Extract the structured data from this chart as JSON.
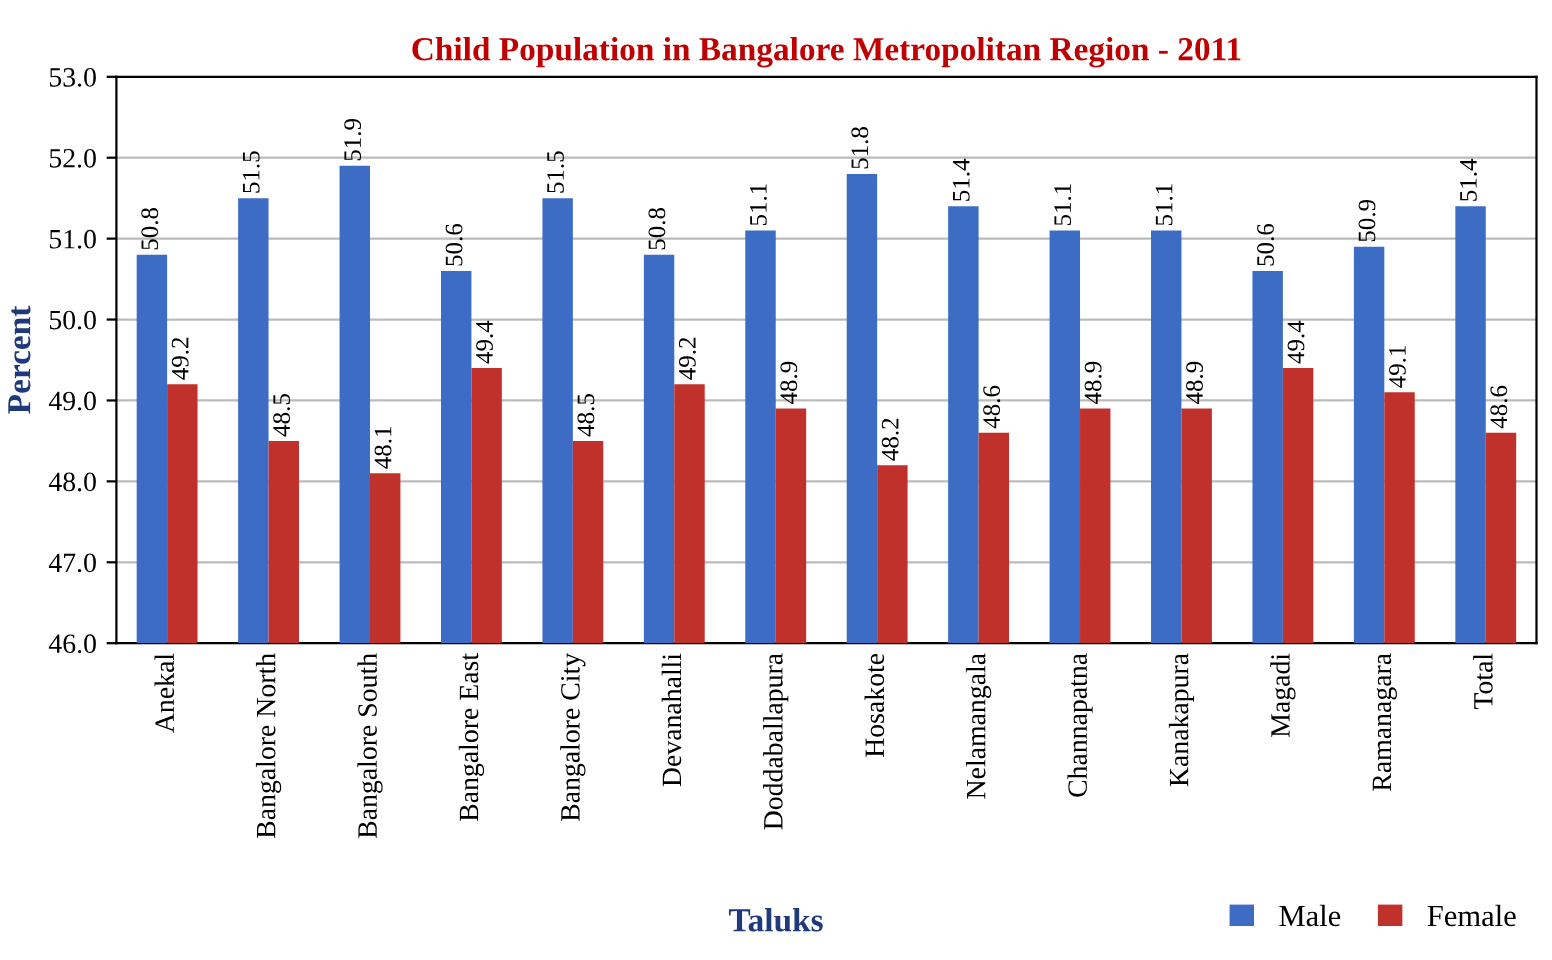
{
  "chart_data": {
    "type": "bar",
    "title": "Child Population in Bangalore Metropolitan Region - 2011",
    "xlabel": "Taluks",
    "ylabel": "Percent",
    "categories": [
      "Anekal",
      "Bangalore North",
      "Bangalore South",
      "Bangalore East",
      "Bangalore City",
      "Devanahalli",
      "Doddaballapura",
      "Hosakote",
      "Nelamangala",
      "Channapatna",
      "Kanakapura",
      "Magadi",
      "Ramanagara",
      "Total"
    ],
    "series": [
      {
        "name": "Male",
        "color": "#3d6cc4",
        "values": [
          50.8,
          51.5,
          51.9,
          50.6,
          51.5,
          50.8,
          51.1,
          51.8,
          51.4,
          51.1,
          51.1,
          50.6,
          50.9,
          51.4
        ]
      },
      {
        "name": "Female",
        "color": "#c0312b",
        "values": [
          49.2,
          48.5,
          48.1,
          49.4,
          48.5,
          49.2,
          48.9,
          48.2,
          48.6,
          48.9,
          48.9,
          49.4,
          49.1,
          48.6
        ]
      }
    ],
    "ylim": [
      46,
      53
    ],
    "yticks": [
      {
        "value": 46,
        "label": "46.0"
      },
      {
        "value": 47,
        "label": "47.0"
      },
      {
        "value": 48,
        "label": "48.0"
      },
      {
        "value": 49,
        "label": "49.0"
      },
      {
        "value": 50,
        "label": "50.0"
      },
      {
        "value": 51,
        "label": "51.0"
      },
      {
        "value": 52,
        "label": "52.0"
      },
      {
        "value": 53,
        "label": "53.0"
      }
    ],
    "grid": "y",
    "legend": "bottom right",
    "data_labels": true
  }
}
